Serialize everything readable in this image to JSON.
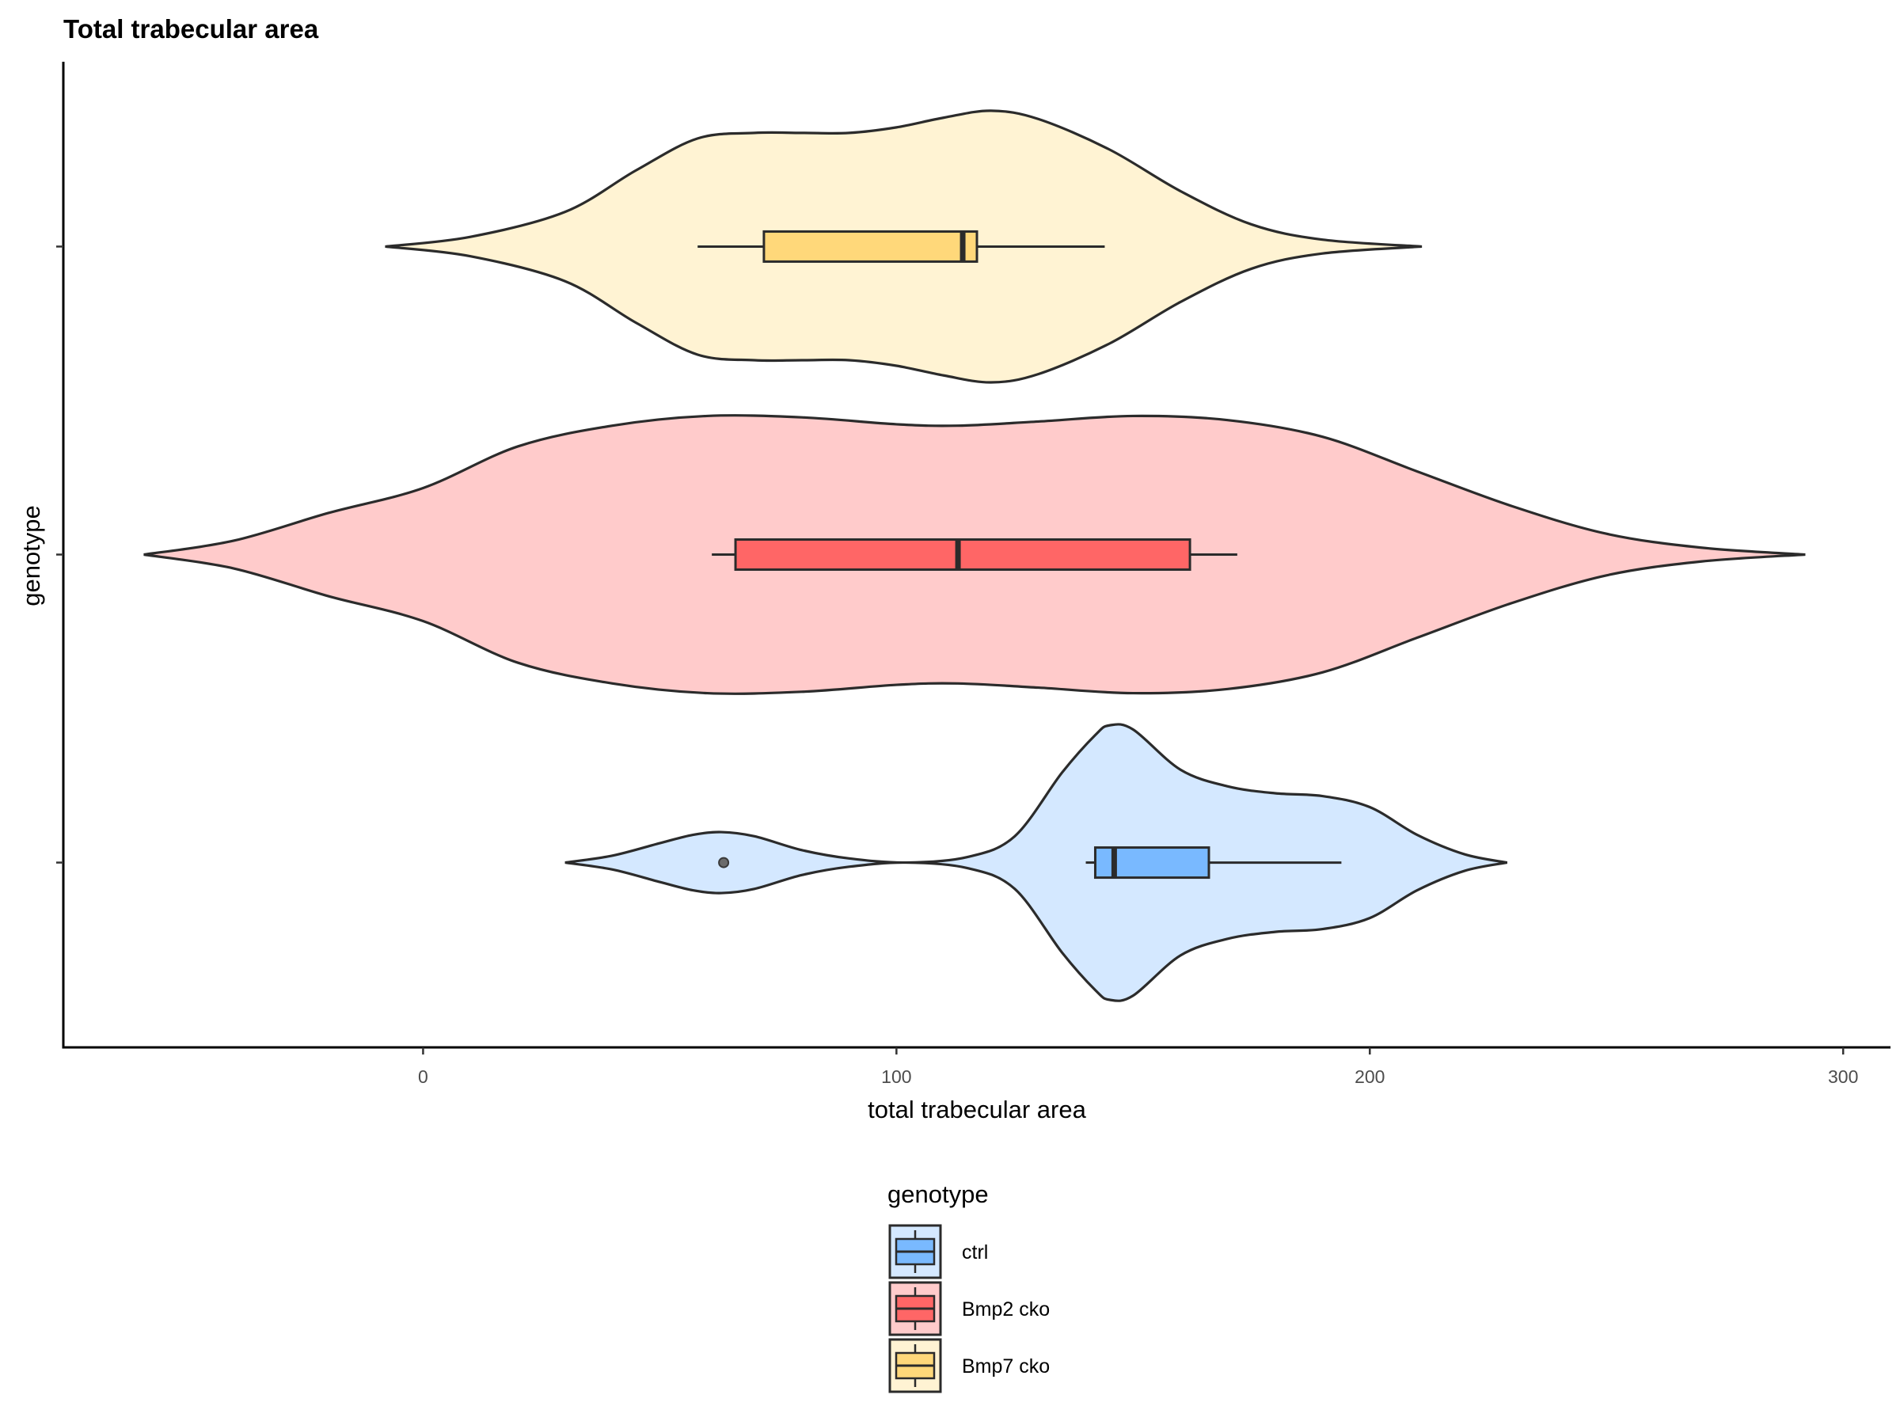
{
  "chart_data": {
    "type": "violin",
    "orientation": "horizontal",
    "title": "Total trabecular area",
    "xlabel": "total trabecular area",
    "ylabel": "genotype",
    "xlim": [
      -76,
      310
    ],
    "x_ticks": [
      0,
      100,
      200,
      300
    ],
    "y_tick_labels_visible": false,
    "grid": false,
    "legend": {
      "title": "genotype",
      "position": "bottom"
    },
    "series": [
      {
        "name": "ctrl",
        "fill": "#d4e8ff",
        "box_fill": "#79b9ff",
        "violin_range": [
          30,
          229
        ],
        "density_profile": [
          [
            30,
            0.0
          ],
          [
            40,
            0.05
          ],
          [
            50,
            0.14
          ],
          [
            57,
            0.2
          ],
          [
            63,
            0.22
          ],
          [
            70,
            0.19
          ],
          [
            80,
            0.09
          ],
          [
            90,
            0.03
          ],
          [
            102,
            0.0
          ],
          [
            115,
            0.04
          ],
          [
            125,
            0.19
          ],
          [
            135,
            0.65
          ],
          [
            142,
            0.92
          ],
          [
            145,
            0.99
          ],
          [
            150,
            0.96
          ],
          [
            160,
            0.67
          ],
          [
            170,
            0.55
          ],
          [
            180,
            0.5
          ],
          [
            190,
            0.48
          ],
          [
            200,
            0.4
          ],
          [
            210,
            0.2
          ],
          [
            220,
            0.06
          ],
          [
            229,
            0.0
          ]
        ],
        "box": {
          "whisker_low": 140,
          "q1": 142,
          "median": 146,
          "q3": 166,
          "whisker_high": 194
        },
        "outliers": [
          63.5
        ]
      },
      {
        "name": "Bmp2 cko",
        "fill": "#ffcbcb",
        "box_fill": "#ff6666",
        "violin_range": [
          -59,
          292
        ],
        "density_profile": [
          [
            -59,
            0.0
          ],
          [
            -40,
            0.1
          ],
          [
            -20,
            0.3
          ],
          [
            0,
            0.48
          ],
          [
            20,
            0.78
          ],
          [
            40,
            0.93
          ],
          [
            60,
            1.0
          ],
          [
            80,
            0.99
          ],
          [
            100,
            0.94
          ],
          [
            113,
            0.93
          ],
          [
            130,
            0.96
          ],
          [
            150,
            1.0
          ],
          [
            170,
            0.97
          ],
          [
            190,
            0.85
          ],
          [
            210,
            0.6
          ],
          [
            230,
            0.35
          ],
          [
            250,
            0.15
          ],
          [
            270,
            0.05
          ],
          [
            292,
            0.0
          ]
        ],
        "box": {
          "whisker_low": 61,
          "q1": 66,
          "median": 113,
          "q3": 162,
          "whisker_high": 172
        },
        "outliers": []
      },
      {
        "name": "Bmp7 cko",
        "fill": "#fff3d3",
        "box_fill": "#ffd87a",
        "violin_range": [
          -8,
          211
        ],
        "density_profile": [
          [
            -8,
            0.0
          ],
          [
            10,
            0.07
          ],
          [
            30,
            0.25
          ],
          [
            45,
            0.55
          ],
          [
            58,
            0.78
          ],
          [
            70,
            0.82
          ],
          [
            80,
            0.82
          ],
          [
            90,
            0.82
          ],
          [
            100,
            0.86
          ],
          [
            110,
            0.93
          ],
          [
            120,
            0.98
          ],
          [
            130,
            0.92
          ],
          [
            145,
            0.7
          ],
          [
            160,
            0.4
          ],
          [
            175,
            0.16
          ],
          [
            190,
            0.05
          ],
          [
            211,
            0.0
          ]
        ],
        "box": {
          "whisker_low": 58,
          "q1": 72,
          "median": 114,
          "q3": 117,
          "whisker_high": 144
        },
        "outliers": []
      }
    ]
  }
}
